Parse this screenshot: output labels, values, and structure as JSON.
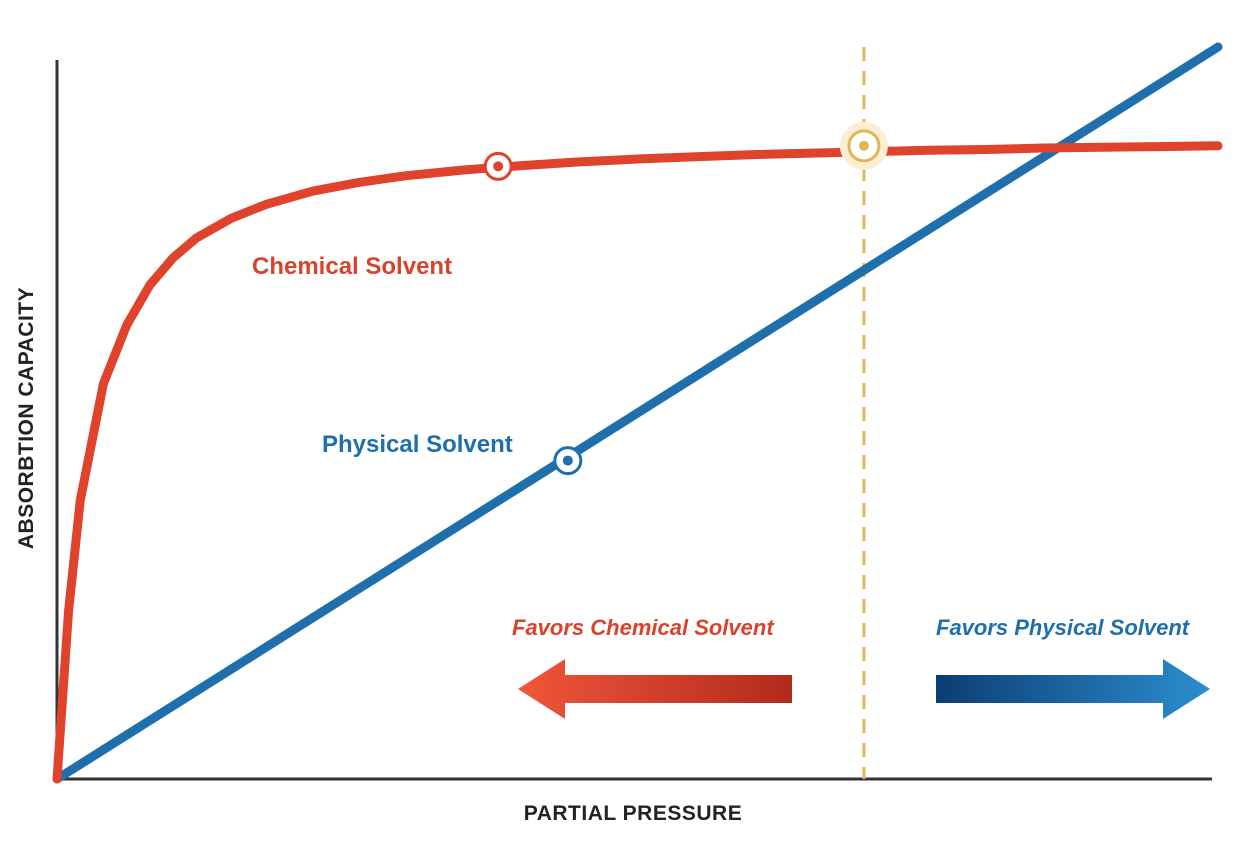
{
  "chart_data": {
    "type": "line",
    "xlabel": "PARTIAL PRESSURE",
    "ylabel": "ABSORBTION CAPACITY",
    "xlim": [
      0,
      100
    ],
    "ylim": [
      0,
      100
    ],
    "grid": false,
    "series": [
      {
        "name": "Chemical Solvent",
        "color": "#e0432b",
        "x": [
          0,
          1,
          2,
          4,
          6,
          8,
          10,
          12,
          15,
          18,
          22,
          26,
          30,
          35,
          40,
          45,
          50,
          55,
          60,
          65,
          70,
          75,
          80,
          85,
          90,
          95,
          100
        ],
        "y": [
          0,
          23,
          38,
          54,
          62,
          67.5,
          71.2,
          73.9,
          76.6,
          78.5,
          80.3,
          81.5,
          82.4,
          83.2,
          83.8,
          84.3,
          84.7,
          85.0,
          85.3,
          85.5,
          85.7,
          85.9,
          86.0,
          86.2,
          86.3,
          86.4,
          86.5
        ],
        "marker": {
          "x": 38,
          "y": 83.7
        }
      },
      {
        "name": "Physical Solvent",
        "color": "#1f6fad",
        "x": [
          0,
          100
        ],
        "y": [
          0,
          100
        ],
        "marker": {
          "x": 44,
          "y": 43.5
        }
      }
    ],
    "crossover": {
      "x": 69.5,
      "y": 86.5,
      "color": "#e3b45a"
    },
    "annotations": [
      {
        "text": "Favors Chemical Solvent",
        "direction": "left",
        "color": "#d9432c"
      },
      {
        "text": "Favors Physical Solvent",
        "direction": "right",
        "color": "#1f6fad"
      }
    ]
  }
}
